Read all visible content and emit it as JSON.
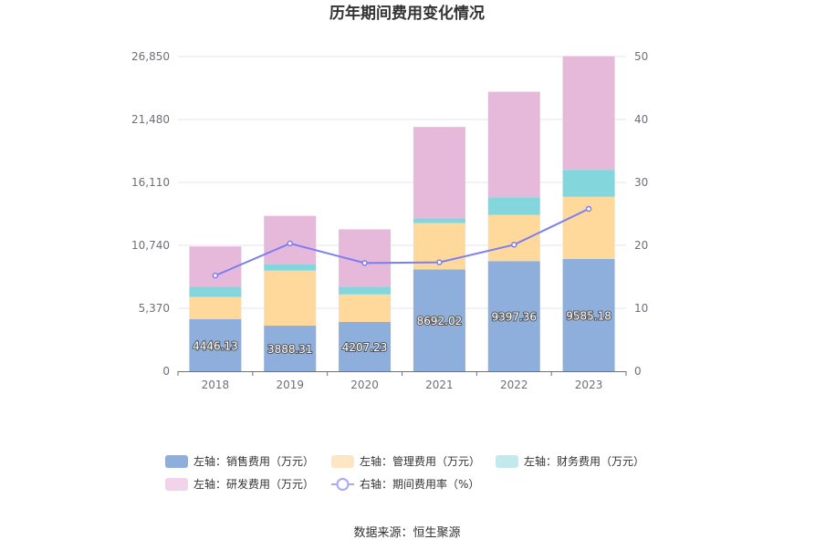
{
  "chart_data": {
    "type": "bar",
    "stacked": true,
    "title": "历年期间费用变化情况",
    "categories": [
      "2018",
      "2019",
      "2020",
      "2021",
      "2022",
      "2023"
    ],
    "y_left": {
      "ticks": [
        "0",
        "5,370",
        "10,740",
        "16,110",
        "21,480",
        "26,850"
      ],
      "range": [
        0,
        26850
      ]
    },
    "y_right": {
      "ticks": [
        "0",
        "10",
        "20",
        "30",
        "40",
        "50"
      ],
      "range": [
        0,
        50
      ]
    },
    "series": [
      {
        "name": "左轴：销售费用（万元）",
        "type": "bar",
        "color": "#8eaedb",
        "values": [
          4446.13,
          3888.31,
          4207.23,
          8692.02,
          9397.36,
          9585.18
        ],
        "labels": [
          "4446.13",
          "3888.31",
          "4207.23",
          "8692.02",
          "9397.36",
          "9585.18"
        ]
      },
      {
        "name": "左轴：管理费用（万元）",
        "type": "bar",
        "color": "#fed99b",
        "values": [
          1900,
          4700,
          2350,
          3950,
          3950,
          5300
        ]
      },
      {
        "name": "左轴：财务费用（万元）",
        "type": "bar",
        "color": "#82d6dc",
        "values": [
          850,
          520,
          650,
          400,
          1500,
          2300
        ]
      },
      {
        "name": "左轴：研发费用（万元）",
        "type": "bar",
        "color": "#e6b8da",
        "values": [
          3450,
          4150,
          4900,
          7800,
          9000,
          9700
        ]
      },
      {
        "name": "右轴：期间费用率（%）",
        "type": "line",
        "axis": "right",
        "color": "#7b7ef2",
        "values": [
          15.2,
          20.3,
          17.2,
          17.3,
          20.1,
          25.8
        ]
      }
    ],
    "legend_position": "bottom",
    "grid": true
  },
  "source_label": "数据来源：恒生聚源"
}
